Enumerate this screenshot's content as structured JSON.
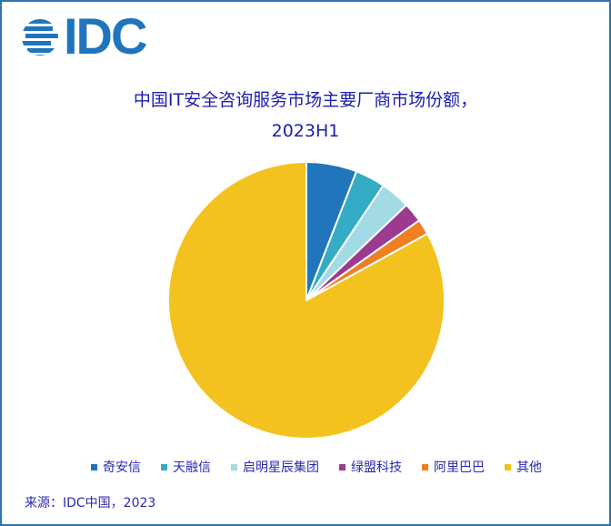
{
  "logo": {
    "text": "IDC",
    "color": "#1f74bd",
    "icon": "globe-stripes-icon"
  },
  "title": {
    "line1": "中国IT安全咨询服务市场主要厂商市场份额，",
    "line2": "2023H1"
  },
  "source": "来源：IDC中国，2023",
  "chart_data": {
    "type": "pie",
    "title": "中国IT安全咨询服务市场主要厂商市场份额，2023H1",
    "categories": [
      "奇安信",
      "天融信",
      "启明星辰集团",
      "绿盟科技",
      "阿里巴巴",
      "其他"
    ],
    "values": [
      5.9,
      3.5,
      3.5,
      2.3,
      1.8,
      83.0
    ],
    "unit": "%",
    "colors": [
      "#2176bb",
      "#34acc6",
      "#a2dae6",
      "#9b3a8e",
      "#f07f22",
      "#f4c21f"
    ],
    "start_angle_deg": 0,
    "direction": "clockwise",
    "legend_position": "bottom",
    "data_labels": false,
    "source": "来源：IDC中国，2023"
  },
  "legend": [
    {
      "label": "奇安信",
      "color": "#2176bb"
    },
    {
      "label": "天融信",
      "color": "#34acc6"
    },
    {
      "label": "启明星辰集团",
      "color": "#a2dae6"
    },
    {
      "label": "绿盟科技",
      "color": "#9b3a8e"
    },
    {
      "label": "阿里巴巴",
      "color": "#f07f22"
    },
    {
      "label": "其他",
      "color": "#f4c21f"
    }
  ]
}
